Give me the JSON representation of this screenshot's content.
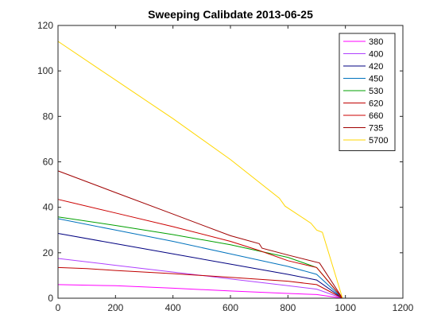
{
  "chart_data": {
    "type": "line",
    "title": "Sweeping Calibdate 2013-06-25",
    "xlabel": "",
    "ylabel": "",
    "xlim": [
      0,
      1200
    ],
    "ylim": [
      0,
      120
    ],
    "xticks": [
      0,
      200,
      400,
      600,
      800,
      1000,
      1200
    ],
    "yticks": [
      0,
      20,
      40,
      60,
      80,
      100,
      120
    ],
    "grid": false,
    "legend_position": "top-right",
    "series": [
      {
        "name": "380",
        "color": "#ff00ff",
        "points": [
          [
            0,
            6.0
          ],
          [
            200,
            5.5
          ],
          [
            400,
            4.4
          ],
          [
            600,
            3.2
          ],
          [
            800,
            2.1
          ],
          [
            900,
            1.6
          ],
          [
            990,
            0
          ]
        ]
      },
      {
        "name": "400",
        "color": "#b040ff",
        "points": [
          [
            0,
            17.5
          ],
          [
            200,
            14.5
          ],
          [
            400,
            11.5
          ],
          [
            600,
            8.5
          ],
          [
            800,
            5.5
          ],
          [
            900,
            4.0
          ],
          [
            990,
            0
          ]
        ]
      },
      {
        "name": "420",
        "color": "#000080",
        "points": [
          [
            0,
            28.5
          ],
          [
            200,
            24.0
          ],
          [
            400,
            19.5
          ],
          [
            600,
            15.0
          ],
          [
            800,
            10.5
          ],
          [
            900,
            8.0
          ],
          [
            990,
            0
          ]
        ]
      },
      {
        "name": "450",
        "color": "#0072bd",
        "points": [
          [
            0,
            35.0
          ],
          [
            200,
            30.0
          ],
          [
            400,
            25.0
          ],
          [
            600,
            19.5
          ],
          [
            800,
            14.0
          ],
          [
            900,
            10.5
          ],
          [
            990,
            0
          ]
        ]
      },
      {
        "name": "530",
        "color": "#00a000",
        "points": [
          [
            0,
            35.8
          ],
          [
            200,
            32.0
          ],
          [
            400,
            28.0
          ],
          [
            600,
            23.5
          ],
          [
            800,
            18.0
          ],
          [
            900,
            13.5
          ],
          [
            990,
            0
          ]
        ]
      },
      {
        "name": "620",
        "color": "#c00000",
        "points": [
          [
            0,
            13.5
          ],
          [
            100,
            13.0
          ],
          [
            200,
            12.2
          ],
          [
            400,
            10.8
          ],
          [
            600,
            9.2
          ],
          [
            800,
            7.5
          ],
          [
            900,
            6.0
          ],
          [
            990,
            0
          ]
        ]
      },
      {
        "name": "660",
        "color": "#cc0000",
        "points": [
          [
            0,
            43.5
          ],
          [
            200,
            37.5
          ],
          [
            400,
            31.5
          ],
          [
            600,
            25.0
          ],
          [
            700,
            21.0
          ],
          [
            800,
            16.5
          ],
          [
            900,
            13.5
          ],
          [
            990,
            0
          ]
        ]
      },
      {
        "name": "735",
        "color": "#a00000",
        "points": [
          [
            0,
            56.0
          ],
          [
            200,
            46.5
          ],
          [
            400,
            37.0
          ],
          [
            600,
            27.5
          ],
          [
            700,
            24.0
          ],
          [
            710,
            22.0
          ],
          [
            800,
            19.0
          ],
          [
            910,
            15.5
          ],
          [
            990,
            0
          ]
        ]
      },
      {
        "name": "5700",
        "color": "#ffd700",
        "points": [
          [
            0,
            113.0
          ],
          [
            200,
            96.0
          ],
          [
            400,
            79.0
          ],
          [
            600,
            61.0
          ],
          [
            770,
            44.0
          ],
          [
            790,
            40.5
          ],
          [
            880,
            33.0
          ],
          [
            900,
            30.0
          ],
          [
            920,
            29.0
          ],
          [
            990,
            0
          ]
        ]
      }
    ]
  }
}
